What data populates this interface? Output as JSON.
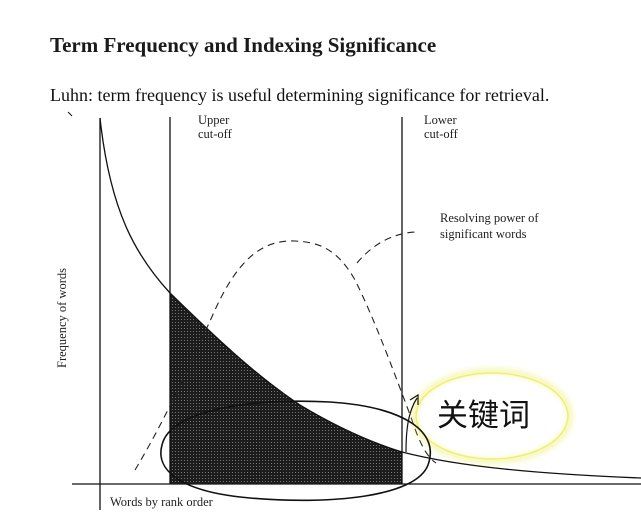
{
  "header": {
    "title": "Term Frequency and Indexing Significance",
    "subtitle": "Luhn: term frequency is useful determining significance for retrieval."
  },
  "diagram": {
    "y_axis_label": "Frequency of words",
    "x_axis_label": "Words by rank order",
    "upper_cutoff": {
      "line1": "Upper",
      "line2": "cut-off"
    },
    "lower_cutoff": {
      "line1": "Lower",
      "line2": "cut-off"
    },
    "resolving_power": {
      "line1": "Resolving power of",
      "line2": "significant words"
    },
    "annotation": "关键词",
    "colors": {
      "curve": "#111111",
      "shaded_region": "#2b2b2b",
      "annotation_ellipse": "#111111",
      "highlight_glow": "#eef06a"
    }
  }
}
